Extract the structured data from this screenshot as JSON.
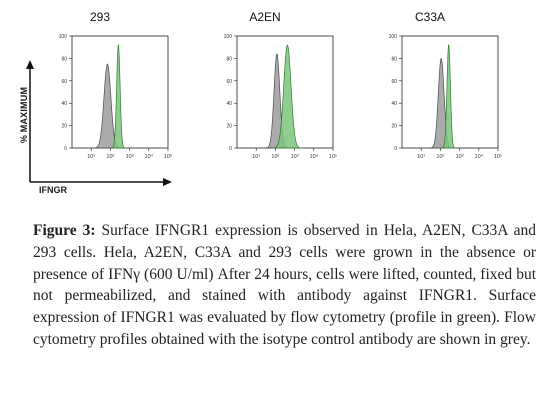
{
  "figure": {
    "y_axis_label": "% MAXIMUM",
    "x_axis_label": "IFNGR",
    "colors": {
      "isotype": "#9a9a9a",
      "ifngr1": "#7dc47d",
      "isotype_dark": "#6e6e6e"
    }
  },
  "chart_data": [
    {
      "type": "area",
      "title": "293",
      "xscale": "log",
      "xlim": [
        1,
        100000
      ],
      "ylim": [
        0,
        100
      ],
      "y_ticks": [
        "0",
        "20",
        "40",
        "60",
        "80",
        "100"
      ],
      "x_ticks": [
        "10¹",
        "10²",
        "10³",
        "10⁴",
        "10⁵"
      ],
      "series": [
        {
          "color": "grey",
          "peak_x": 70,
          "peak_y": 75,
          "width": 0.18
        },
        {
          "color": "green",
          "peak_x": 260,
          "peak_y": 92,
          "width": 0.09
        }
      ]
    },
    {
      "type": "area",
      "title": "A2EN",
      "xscale": "log",
      "xlim": [
        1,
        100000
      ],
      "ylim": [
        0,
        100
      ],
      "y_ticks": [
        "0",
        "20",
        "40",
        "60",
        "80",
        "100"
      ],
      "x_ticks": [
        "10¹",
        "10²",
        "10³",
        "10⁴",
        "10⁵"
      ],
      "series": [
        {
          "color": "grey",
          "peak_x": 120,
          "peak_y": 84,
          "width": 0.15
        },
        {
          "color": "green",
          "peak_x": 420,
          "peak_y": 92,
          "width": 0.19
        }
      ]
    },
    {
      "type": "area",
      "title": "C33A",
      "xscale": "log",
      "xlim": [
        1,
        100000
      ],
      "ylim": [
        0,
        100
      ],
      "y_ticks": [
        "0",
        "20",
        "40",
        "60",
        "80",
        "100"
      ],
      "x_ticks": [
        "10¹",
        "10²",
        "10³",
        "10⁴",
        "10⁵"
      ],
      "series": [
        {
          "color": "grey",
          "peak_x": 110,
          "peak_y": 80,
          "width": 0.15
        },
        {
          "color": "green",
          "peak_x": 270,
          "peak_y": 92,
          "width": 0.09
        }
      ]
    }
  ],
  "caption": {
    "label": "Figure 3:",
    "text": " Surface IFNGR1 expression is observed in Hela, A2EN, C33A and 293 cells. Hela, A2EN, C33A and 293 cells were grown in the absence or presence of IFNγ (600 U/ml) After 24 hours, cells were lifted, counted, fixed but not permeabilized, and stained with antibody against IFNGR1. Surface expression of IFNGR1 was evaluated by flow cytometry (profile in green). Flow cytometry profiles obtained with the isotype control antibody are shown in grey."
  }
}
